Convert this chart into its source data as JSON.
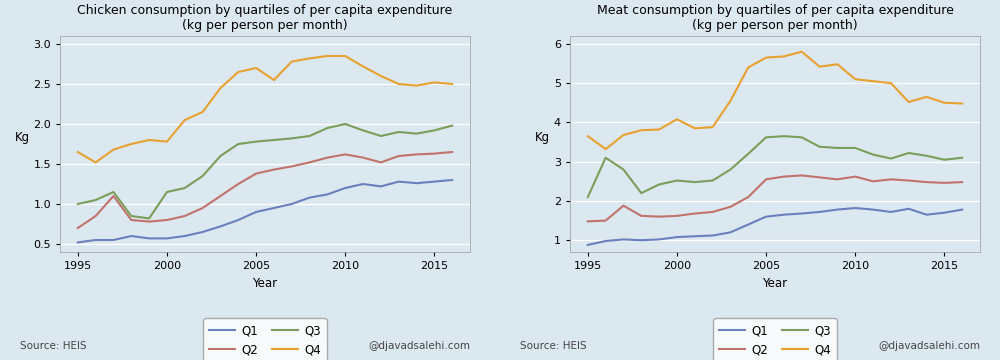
{
  "chicken": {
    "title": "Chicken consumption by quartiles of per capita expenditure\n(kg per person per month)",
    "years": [
      1995,
      1996,
      1997,
      1998,
      1999,
      2000,
      2001,
      2002,
      2003,
      2004,
      2005,
      2006,
      2007,
      2008,
      2009,
      2010,
      2011,
      2012,
      2013,
      2014,
      2015,
      2016
    ],
    "Q1": [
      0.52,
      0.55,
      0.55,
      0.6,
      0.57,
      0.57,
      0.6,
      0.65,
      0.72,
      0.8,
      0.9,
      0.95,
      1.0,
      1.08,
      1.12,
      1.2,
      1.25,
      1.22,
      1.28,
      1.26,
      1.28,
      1.3
    ],
    "Q2": [
      0.7,
      0.85,
      1.1,
      0.8,
      0.78,
      0.8,
      0.85,
      0.95,
      1.1,
      1.25,
      1.38,
      1.43,
      1.47,
      1.52,
      1.58,
      1.62,
      1.58,
      1.52,
      1.6,
      1.62,
      1.63,
      1.65
    ],
    "Q3": [
      1.0,
      1.05,
      1.15,
      0.85,
      0.82,
      1.15,
      1.2,
      1.35,
      1.6,
      1.75,
      1.78,
      1.8,
      1.82,
      1.85,
      1.95,
      2.0,
      1.92,
      1.85,
      1.9,
      1.88,
      1.92,
      1.98
    ],
    "Q4": [
      1.65,
      1.52,
      1.68,
      1.75,
      1.8,
      1.78,
      2.05,
      2.15,
      2.45,
      2.65,
      2.7,
      2.55,
      2.78,
      2.82,
      2.85,
      2.85,
      2.72,
      2.6,
      2.5,
      2.48,
      2.52,
      2.5
    ],
    "ylim": [
      0.4,
      3.1
    ],
    "yticks": [
      0.5,
      1.0,
      1.5,
      2.0,
      2.5,
      3.0
    ],
    "ylabel": "Kg",
    "xlabel": "Year"
  },
  "meat": {
    "title": "Meat consumption by quartiles of per capita expenditure\n(kg per person per month)",
    "years": [
      1995,
      1996,
      1997,
      1998,
      1999,
      2000,
      2001,
      2002,
      2003,
      2004,
      2005,
      2006,
      2007,
      2008,
      2009,
      2010,
      2011,
      2012,
      2013,
      2014,
      2015,
      2016
    ],
    "Q1": [
      0.88,
      0.98,
      1.02,
      1.0,
      1.02,
      1.08,
      1.1,
      1.12,
      1.2,
      1.4,
      1.6,
      1.65,
      1.68,
      1.72,
      1.78,
      1.82,
      1.78,
      1.72,
      1.8,
      1.65,
      1.7,
      1.78
    ],
    "Q2": [
      1.48,
      1.5,
      1.88,
      1.62,
      1.6,
      1.62,
      1.68,
      1.72,
      1.85,
      2.1,
      2.55,
      2.62,
      2.65,
      2.6,
      2.55,
      2.62,
      2.5,
      2.55,
      2.52,
      2.48,
      2.46,
      2.48
    ],
    "Q3": [
      2.1,
      3.1,
      2.8,
      2.2,
      2.42,
      2.52,
      2.48,
      2.52,
      2.8,
      3.2,
      3.62,
      3.65,
      3.62,
      3.38,
      3.35,
      3.35,
      3.18,
      3.08,
      3.22,
      3.15,
      3.05,
      3.1
    ],
    "Q4": [
      3.65,
      3.32,
      3.68,
      3.8,
      3.82,
      4.08,
      3.85,
      3.88,
      4.55,
      5.4,
      5.65,
      5.68,
      5.8,
      5.42,
      5.48,
      5.1,
      5.05,
      5.0,
      4.52,
      4.65,
      4.5,
      4.48
    ],
    "ylim": [
      0.7,
      6.2
    ],
    "yticks": [
      1,
      2,
      3,
      4,
      5,
      6
    ],
    "ylabel": "Kg",
    "xlabel": "Year"
  },
  "colors": {
    "Q1": "#6b7fbd",
    "Q2": "#c0736a",
    "Q3": "#7a9e5a",
    "Q4": "#e8a030"
  },
  "bg_color": "#dce8f0",
  "source_text": "Source: HEIS",
  "watermark_text": "@djavadsalehi.com",
  "linewidth": 1.5,
  "xlim": [
    1994,
    2017
  ],
  "xticks": [
    1995,
    2000,
    2005,
    2010,
    2015
  ]
}
